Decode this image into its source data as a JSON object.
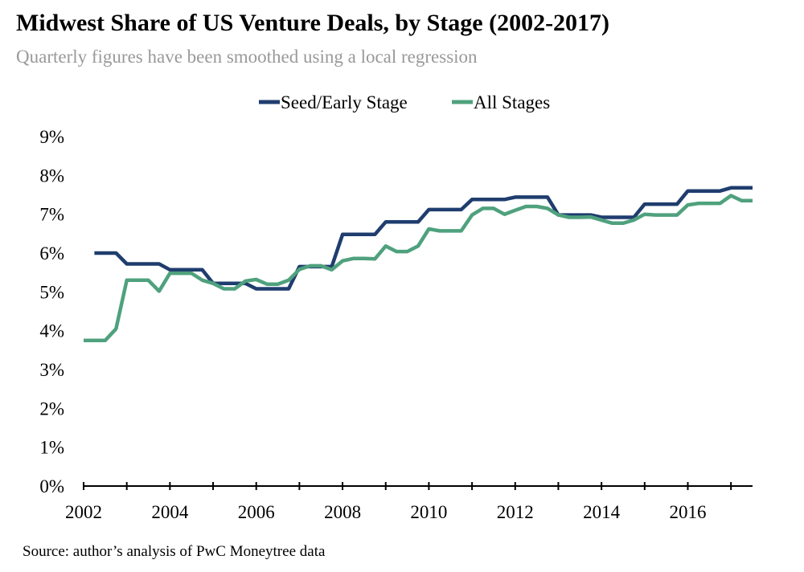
{
  "chart_data": {
    "type": "line",
    "title": "Midwest Share of US Venture Deals, by Stage (2002-2017)",
    "subtitle": "Quarterly figures have been smoothed using a local regression",
    "source": "Source: author’s analysis of PwC Moneytree data",
    "xlim": [
      2002,
      2017.5
    ],
    "ylim": [
      0,
      9
    ],
    "x_ticks": [
      2002,
      2004,
      2006,
      2008,
      2010,
      2012,
      2014,
      2016
    ],
    "x_tick_labels": [
      "2002",
      "2004",
      "2006",
      "2008",
      "2010",
      "2012",
      "2014",
      "2016"
    ],
    "y_ticks": [
      0,
      1,
      2,
      3,
      4,
      5,
      6,
      7,
      8,
      9
    ],
    "y_tick_labels": [
      "0%",
      "1%",
      "2%",
      "3%",
      "4%",
      "5%",
      "6%",
      "7%",
      "8%",
      "9%"
    ],
    "grid": false,
    "legend_position": "top-center",
    "series": [
      {
        "name": "Seed/Early Stage",
        "color": "#1f3d6e",
        "x": [
          2002.25,
          2002.75,
          2003.0,
          2003.5,
          2003.75,
          2004.0,
          2004.5,
          2004.75,
          2005.0,
          2005.5,
          2005.75,
          2006.0,
          2006.5,
          2006.75,
          2007.0,
          2007.5,
          2007.75,
          2008.0,
          2008.5,
          2008.75,
          2009.0,
          2009.5,
          2009.75,
          2010.0,
          2010.5,
          2010.75,
          2011.0,
          2011.5,
          2011.75,
          2012.0,
          2012.5,
          2012.75,
          2013.0,
          2013.5,
          2013.75,
          2014.0,
          2014.5,
          2014.75,
          2015.0,
          2015.5,
          2015.75,
          2016.0,
          2016.5,
          2016.75,
          2017.0,
          2017.5
        ],
        "y": [
          6.0,
          6.0,
          5.72,
          5.72,
          5.72,
          5.57,
          5.57,
          5.57,
          5.22,
          5.22,
          5.22,
          5.08,
          5.08,
          5.08,
          5.65,
          5.65,
          5.65,
          6.48,
          6.48,
          6.48,
          6.8,
          6.8,
          6.8,
          7.12,
          7.12,
          7.12,
          7.38,
          7.38,
          7.38,
          7.44,
          7.44,
          7.44,
          6.98,
          6.98,
          6.98,
          6.92,
          6.92,
          6.92,
          7.26,
          7.26,
          7.26,
          7.6,
          7.6,
          7.6,
          7.68,
          7.68
        ]
      },
      {
        "name": "All Stages",
        "color": "#4fa17d",
        "x": [
          2002.0,
          2002.25,
          2002.5,
          2002.75,
          2003.0,
          2003.25,
          2003.5,
          2003.75,
          2004.0,
          2004.25,
          2004.5,
          2004.75,
          2005.0,
          2005.25,
          2005.5,
          2005.75,
          2006.0,
          2006.25,
          2006.5,
          2006.75,
          2007.0,
          2007.25,
          2007.5,
          2007.75,
          2008.0,
          2008.25,
          2008.5,
          2008.75,
          2009.0,
          2009.25,
          2009.5,
          2009.75,
          2010.0,
          2010.25,
          2010.5,
          2010.75,
          2011.0,
          2011.25,
          2011.5,
          2011.75,
          2012.0,
          2012.25,
          2012.5,
          2012.75,
          2013.0,
          2013.25,
          2013.5,
          2013.75,
          2014.0,
          2014.25,
          2014.5,
          2014.75,
          2015.0,
          2015.25,
          2015.5,
          2015.75,
          2016.0,
          2016.25,
          2016.5,
          2016.75,
          2017.0,
          2017.25,
          2017.5
        ],
        "y": [
          3.75,
          3.75,
          3.75,
          4.05,
          5.3,
          5.3,
          5.3,
          5.02,
          5.48,
          5.48,
          5.48,
          5.3,
          5.22,
          5.08,
          5.08,
          5.28,
          5.32,
          5.2,
          5.2,
          5.3,
          5.58,
          5.67,
          5.67,
          5.57,
          5.8,
          5.86,
          5.86,
          5.85,
          6.18,
          6.04,
          6.04,
          6.18,
          6.62,
          6.57,
          6.57,
          6.57,
          6.98,
          7.15,
          7.15,
          7.0,
          7.1,
          7.2,
          7.2,
          7.15,
          6.98,
          6.92,
          6.92,
          6.93,
          6.85,
          6.77,
          6.77,
          6.85,
          7.0,
          6.98,
          6.98,
          6.98,
          7.24,
          7.28,
          7.28,
          7.28,
          7.48,
          7.35,
          7.35
        ]
      }
    ]
  }
}
